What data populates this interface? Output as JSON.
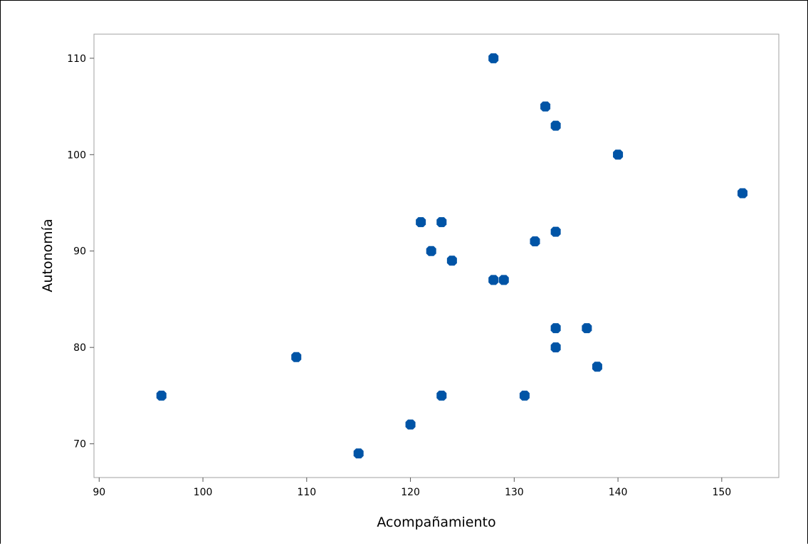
{
  "chart_data": {
    "type": "scatter",
    "title": "",
    "xlabel": "Acompañamiento",
    "ylabel": "Autonomía",
    "xlim": [
      89.5,
      155.5
    ],
    "ylim": [
      66.5,
      112.5
    ],
    "xticks": [
      90,
      100,
      110,
      120,
      130,
      140,
      150
    ],
    "yticks": [
      70,
      80,
      90,
      100,
      110
    ],
    "grid": false,
    "marker_color": "#0054A6",
    "points": [
      {
        "x": 96,
        "y": 75
      },
      {
        "x": 109,
        "y": 79
      },
      {
        "x": 115,
        "y": 69
      },
      {
        "x": 120,
        "y": 72
      },
      {
        "x": 121,
        "y": 93
      },
      {
        "x": 122,
        "y": 90
      },
      {
        "x": 123,
        "y": 93
      },
      {
        "x": 123,
        "y": 75
      },
      {
        "x": 124,
        "y": 89
      },
      {
        "x": 128,
        "y": 110
      },
      {
        "x": 128,
        "y": 87
      },
      {
        "x": 129,
        "y": 87
      },
      {
        "x": 131,
        "y": 75
      },
      {
        "x": 132,
        "y": 91
      },
      {
        "x": 133,
        "y": 105
      },
      {
        "x": 134,
        "y": 103
      },
      {
        "x": 134,
        "y": 92
      },
      {
        "x": 134,
        "y": 82
      },
      {
        "x": 134,
        "y": 80
      },
      {
        "x": 137,
        "y": 82
      },
      {
        "x": 138,
        "y": 78
      },
      {
        "x": 140,
        "y": 100
      },
      {
        "x": 152,
        "y": 96
      }
    ]
  }
}
